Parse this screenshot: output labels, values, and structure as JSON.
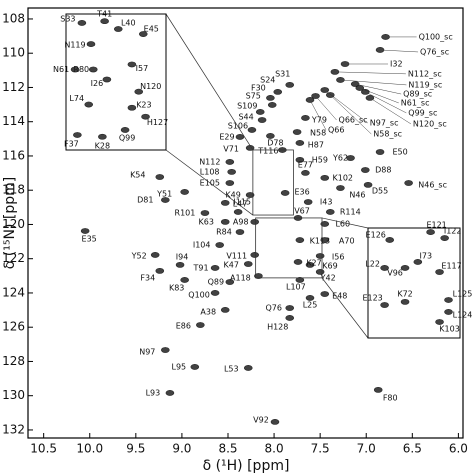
{
  "chart_data": {
    "type": "scatter",
    "x_label": "δ (¹H) [ppm]",
    "y_label": "δ (¹⁵N) [ppm]",
    "xlim": [
      10.67,
      5.95
    ],
    "ylim": [
      107.36,
      132.47
    ],
    "xticks": [
      10.5,
      {
        "value": 10,
        "label": "10.0"
      },
      9.5,
      {
        "value": 9,
        "label": "9.0"
      },
      8.5,
      {
        "value": 8,
        "label": "8.0"
      },
      7.5,
      {
        "value": 7,
        "label": "7.0"
      },
      6.5,
      {
        "value": 6,
        "label": "6.0"
      }
    ],
    "yticks": [
      108,
      110,
      112,
      114,
      116,
      118,
      120,
      122,
      124,
      126,
      128,
      130,
      132
    ],
    "color": "#222",
    "labels": [
      "Q100_sc",
      "Q76_sc",
      "I32",
      "N112_sc",
      "N119_sc",
      "Q89_sc",
      "N61_sc",
      "Q99_sc",
      "N120_sc",
      "N97_sc",
      "N58_sc",
      "Q66_sc",
      "Q66",
      "S24",
      "S31",
      "F30",
      "S75",
      "S109",
      "S44",
      "Y79",
      "S106",
      "N58",
      "D78",
      "E29",
      "H87",
      "T116",
      "V71",
      "H59",
      "Y62",
      "E50",
      "N112",
      "L108",
      "E105",
      "K54",
      "D88",
      "E77",
      "K102",
      "N46",
      "Y51",
      "K49",
      "E36",
      "D55",
      "N46_sc",
      "D81",
      "I115",
      "I43",
      "R101",
      "L47",
      "R114",
      "K63",
      "A98",
      "V67",
      "R84",
      "L60",
      "E35",
      "I104",
      "K113",
      "A70",
      "Y52",
      "V111",
      "I56",
      "Y42",
      "K69",
      "K27",
      "I94",
      "T91",
      "K47",
      "F34",
      "A118",
      "K83",
      "L107",
      "L25",
      "E48",
      "Q100",
      "Q89",
      "A38",
      "Q76",
      "H128",
      "E86",
      "N97",
      "L95",
      "L53",
      "L93",
      "F80",
      "V92"
    ],
    "x": [
      6.79,
      6.85,
      7.23,
      7.34,
      7.28,
      7.12,
      7.07,
      7.01,
      6.96,
      7.45,
      7.39,
      7.55,
      7.61,
      7.96,
      7.83,
      8.04,
      8.02,
      8.15,
      8.13,
      7.66,
      8.24,
      7.75,
      8.04,
      8.37,
      7.72,
      7.91,
      8.26,
      7.72,
      7.17,
      6.85,
      8.48,
      8.46,
      8.48,
      9.24,
      7.01,
      7.66,
      7.45,
      7.28,
      8.97,
      8.26,
      7.88,
      6.98,
      6.54,
      9.18,
      8.53,
      7.63,
      8.75,
      8.39,
      7.39,
      8.53,
      8.21,
      7.74,
      8.37,
      7.45,
      10.05,
      8.59,
      7.72,
      7.45,
      9.29,
      8.21,
      7.5,
      7.5,
      7.61,
      7.74,
      9.02,
      8.64,
      8.28,
      9.24,
      8.17,
      8.97,
      7.72,
      7.61,
      7.45,
      8.64,
      8.48,
      8.53,
      7.83,
      7.83,
      8.8,
      9.18,
      8.86,
      8.28,
      9.13,
      6.87,
      7.99
    ],
    "y": [
      109.05,
      109.81,
      110.63,
      111.09,
      111.56,
      111.8,
      112.03,
      112.26,
      112.61,
      112.15,
      112.44,
      112.5,
      112.73,
      112.26,
      111.85,
      112.61,
      113.02,
      113.43,
      113.9,
      113.78,
      114.48,
      114.6,
      114.83,
      114.89,
      115.24,
      115.65,
      115.53,
      116.23,
      116.12,
      115.77,
      116.35,
      116.93,
      117.58,
      117.23,
      116.82,
      116.99,
      117.28,
      117.87,
      118.1,
      118.28,
      118.16,
      117.69,
      117.58,
      118.57,
      118.74,
      118.69,
      119.33,
      119.27,
      119.27,
      119.85,
      119.85,
      119.62,
      120.44,
      119.97,
      120.38,
      121.2,
      120.91,
      120.91,
      121.78,
      121.78,
      121.84,
      122.77,
      122.36,
      122.19,
      122.36,
      122.54,
      122.31,
      122.71,
      123.01,
      123.24,
      123.24,
      124.29,
      124.06,
      124.0,
      123.36,
      124.99,
      124.88,
      125.46,
      125.87,
      127.33,
      128.32,
      128.38,
      129.84,
      129.66,
      131.53
    ],
    "insets": [
      {
        "xlim": [
          8.23,
          7.79
        ],
        "ylim": [
          115.65,
          119.45
        ],
        "labels": [
          "S33",
          "T41",
          "L40",
          "E45",
          "N119",
          "R80",
          "I57",
          "N61",
          "I26",
          "N120",
          "L74",
          "K23",
          "H127",
          "F37",
          "K28",
          "Q99"
        ],
        "x": [
          8.16,
          8.06,
          8.0,
          7.89,
          8.12,
          8.11,
          7.94,
          8.19,
          8.05,
          7.91,
          8.13,
          7.94,
          7.88,
          8.18,
          8.07,
          7.97
        ],
        "y": [
          115.9,
          115.85,
          116.07,
          116.21,
          116.49,
          117.2,
          117.06,
          117.2,
          117.48,
          117.82,
          118.18,
          118.27,
          118.52,
          119.03,
          119.08,
          118.89
        ]
      },
      {
        "xlim": [
          8.2,
          7.48
        ],
        "ylim": [
          119.62,
          123.12
        ],
        "labels": [
          "E126",
          "E121",
          "I122",
          "L22",
          "V96",
          "I73",
          "E117",
          "E123",
          "K72",
          "L125",
          "L124",
          "K103"
        ],
        "x": [
          8.03,
          7.71,
          7.6,
          8.07,
          7.91,
          7.81,
          7.64,
          8.07,
          7.91,
          7.57,
          7.57,
          7.64
        ],
        "y": [
          120.0,
          119.75,
          119.94,
          120.89,
          120.89,
          120.7,
          121.02,
          122.07,
          121.97,
          121.91,
          122.29,
          122.61
        ]
      }
    ]
  }
}
